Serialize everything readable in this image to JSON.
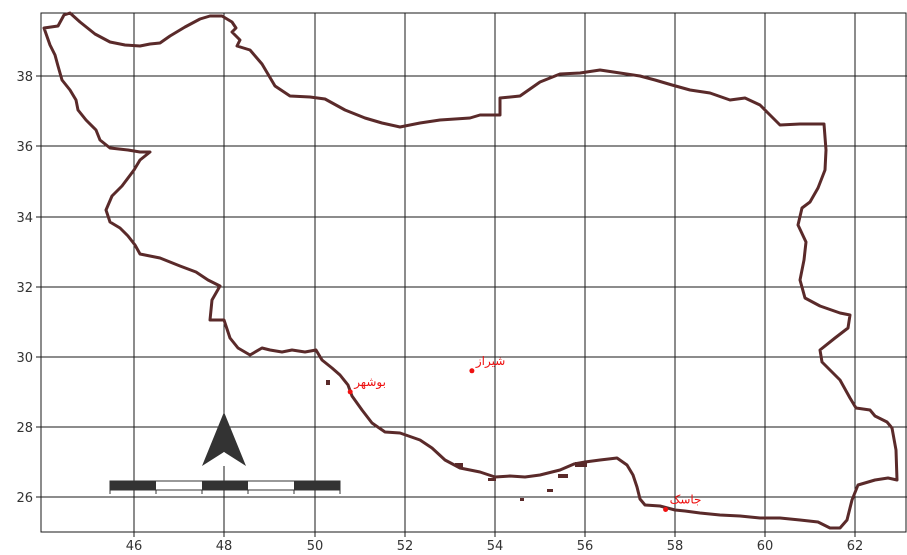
{
  "map": {
    "colors": {
      "border": "#5a2a2a",
      "grid": "#1a1a1a",
      "city": "#ee1111",
      "axis_label": "#333333",
      "north_arrow": "#333333",
      "scale_bar_dark": "#333333"
    },
    "x_ticks": [
      {
        "label": "46",
        "value": 46
      },
      {
        "label": "48",
        "value": 48
      },
      {
        "label": "50",
        "value": 50
      },
      {
        "label": "52",
        "value": 52
      },
      {
        "label": "54",
        "value": 54
      },
      {
        "label": "56",
        "value": 56
      },
      {
        "label": "58",
        "value": 58
      },
      {
        "label": "60",
        "value": 60
      },
      {
        "label": "62",
        "value": 62
      }
    ],
    "y_ticks": [
      {
        "label": "38",
        "value": 38
      },
      {
        "label": "36",
        "value": 36
      },
      {
        "label": "34",
        "value": 34
      },
      {
        "label": "32",
        "value": 32
      },
      {
        "label": "30",
        "value": 30
      },
      {
        "label": "28",
        "value": 28
      },
      {
        "label": "26",
        "value": 26
      }
    ],
    "cities": [
      {
        "name": "بوشهر",
        "lon": 50.8,
        "lat": 29.0
      },
      {
        "name": "شیراز",
        "lon": 53.5,
        "lat": 29.6
      },
      {
        "name": "جاسک",
        "lon": 57.8,
        "lat": 25.65
      }
    ],
    "north_arrow_icon": "north-arrow-icon",
    "scale_bar_icon": "scale-bar-icon"
  }
}
